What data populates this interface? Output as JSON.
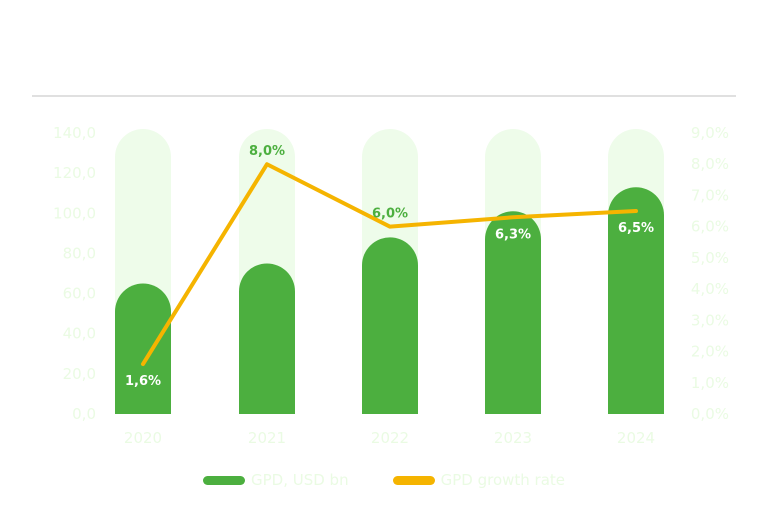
{
  "chart_data": {
    "type": "bar+line",
    "categories": [
      "2020",
      "2021",
      "2022",
      "2023",
      "2024"
    ],
    "series": [
      {
        "name": "GPD, USD bn",
        "type": "bar",
        "axis": "left",
        "color": "#4caf3f",
        "values": [
          65,
          75,
          88,
          101,
          113
        ]
      },
      {
        "name": "GPD growth rate",
        "type": "line",
        "axis": "right",
        "color": "#f5b400",
        "values": [
          1.6,
          8.0,
          6.0,
          6.3,
          6.5
        ],
        "data_labels": [
          "1,6%",
          "8,0%",
          "6,0%",
          "6,3%",
          "6,5%"
        ]
      }
    ],
    "y_left": {
      "ylim": [
        0,
        140
      ],
      "ticks": [
        0,
        20,
        40,
        60,
        80,
        100,
        120,
        140
      ],
      "tick_labels": [
        "0,0",
        "20,0",
        "40,0",
        "60,0",
        "80,0",
        "100,0",
        "120,0",
        "140,0"
      ]
    },
    "y_right": {
      "ylim": [
        0,
        9
      ],
      "ticks": [
        0,
        1,
        2,
        3,
        4,
        5,
        6,
        7,
        8,
        9
      ],
      "tick_labels": [
        "0,0%",
        "1,0%",
        "2,0%",
        "3,0%",
        "4,0%",
        "5,0%",
        "6,0%",
        "7,0%",
        "8,0%",
        "9,0%"
      ]
    },
    "legend_position": "bottom-center",
    "grid": false,
    "colors": {
      "bar": "#4caf3f",
      "bar_track": "#eefcea",
      "line": "#f5b400",
      "axis_text": "#eafbe3",
      "divider": "#d6d6d6"
    }
  }
}
